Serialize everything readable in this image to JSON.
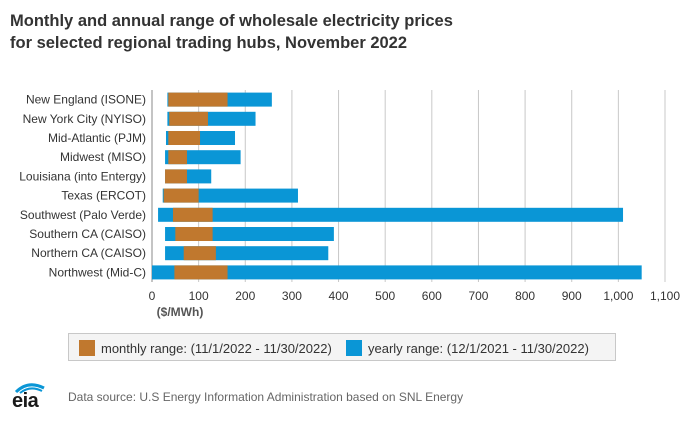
{
  "title_lines": [
    "Monthly and annual range of wholesale electricity prices",
    "for selected regional trading hubs, November 2022"
  ],
  "source": "Data source: U.S Energy Information Administration based on SNL Energy",
  "logo_text": "eia",
  "colors": {
    "monthly": "#c0782e",
    "yearly": "#0a96d6",
    "grid": "#c8c8c8",
    "axis_text": "#333333"
  },
  "chart_data": {
    "type": "bar",
    "orientation": "horizontal",
    "stacked": "floating-range",
    "unit_label": "($/MWh)",
    "xlim": [
      0,
      1100
    ],
    "xticks": [
      0,
      100,
      200,
      300,
      400,
      500,
      600,
      700,
      800,
      900,
      1000,
      1100
    ],
    "xtick_labels": [
      "0",
      "100",
      "200",
      "300",
      "400",
      "500",
      "600",
      "700",
      "800",
      "900",
      "1,000",
      "1,100"
    ],
    "grid": true,
    "legend_position": "bottom",
    "categories": [
      "New England (ISONE)",
      "New York City (NYISO)",
      "Mid-Atlantic (PJM)",
      "Midwest (MISO)",
      "Louisiana (into Entergy)",
      "Texas (ERCOT)",
      "Southwest (Palo Verde)",
      "Southern CA (CAISO)",
      "Northern CA (CAISO)",
      "Northwest (Mid-C)"
    ],
    "series": [
      {
        "name": "monthly range: (11/1/2022 - 11/30/2022)",
        "ranges": [
          [
            35,
            162
          ],
          [
            37,
            120
          ],
          [
            35,
            103
          ],
          [
            35,
            75
          ],
          [
            28,
            75
          ],
          [
            25,
            100
          ],
          [
            45,
            130
          ],
          [
            50,
            130
          ],
          [
            68,
            137
          ],
          [
            48,
            162
          ]
        ]
      },
      {
        "name": "yearly range: (12/1/2021 - 11/30/2022)",
        "ranges": [
          [
            33,
            257
          ],
          [
            33,
            222
          ],
          [
            30,
            178
          ],
          [
            28,
            190
          ],
          [
            28,
            127
          ],
          [
            23,
            313
          ],
          [
            13,
            1010
          ],
          [
            28,
            390
          ],
          [
            28,
            378
          ],
          [
            0,
            1050
          ]
        ]
      }
    ]
  }
}
